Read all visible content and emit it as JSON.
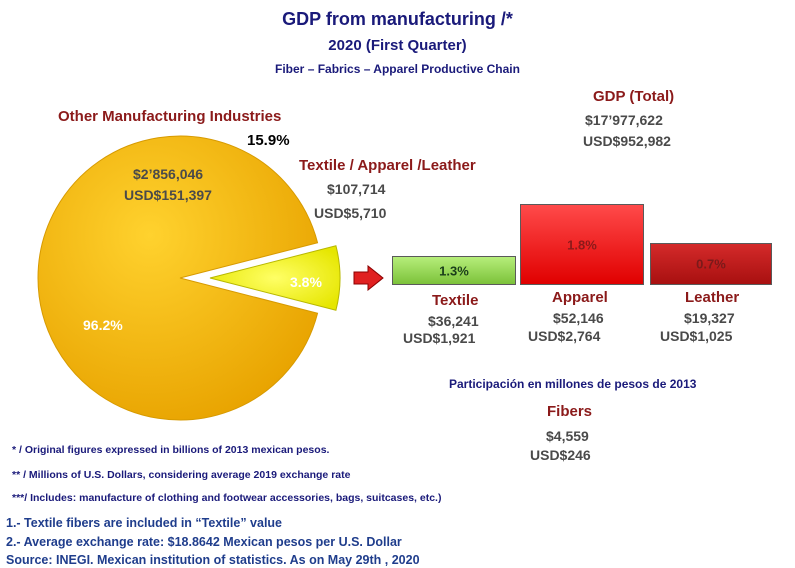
{
  "chart_data": {
    "type": "pie",
    "title": "GDP from manufacturing /*",
    "subtitle": "2020 (First Quarter)",
    "subtitle2": "Fiber – Fabrics – Apparel Productive Chain",
    "slices": [
      {
        "label": "Other Manufacturing Industries",
        "percent": 96.2,
        "percent_label": "96.2%",
        "value_mxn": "$2’856,046",
        "value_usd": "USD$151,397",
        "color": "#f2b705"
      },
      {
        "label": "Textile / Apparel /Leather",
        "percent": 3.8,
        "percent_label": "3.8%",
        "value_mxn": "$107,714",
        "value_usd": "USD$5,710",
        "color": "#ffff33"
      }
    ],
    "callout": "15.9%",
    "total": {
      "label": "GDP (Total)",
      "value_mxn": "$17’977,622",
      "value_usd": "USD$952,982"
    },
    "bars": [
      {
        "label": "Textile",
        "percent": 1.3,
        "percent_label": "1.3%",
        "value_mxn": "$36,241",
        "value_usd": "USD$1,921",
        "color": "#8fd44a"
      },
      {
        "label": "Apparel",
        "percent": 1.8,
        "percent_label": "1.8%",
        "value_mxn": "$52,146",
        "value_usd": "USD$2,764",
        "color": "#ff1a1a"
      },
      {
        "label": "Leather",
        "percent": 0.7,
        "percent_label": "0.7%",
        "value_mxn": "$19,327",
        "value_usd": "USD$1,025",
        "color": "#c41a1a"
      }
    ],
    "participation_note": "Participación en millones de pesos de 2013",
    "fibers": {
      "label": "Fibers",
      "value_mxn": "$4,559",
      "value_usd": "USD$246"
    }
  },
  "footnotes": [
    "* / Original figures expressed in billions of 2013 mexican pesos.",
    "** / Millions of U.S. Dollars, considering average 2019 exchange rate",
    "***/ Includes: manufacture of clothing and footwear accessories, bags, suitcases, etc.)"
  ],
  "notes": [
    "1.- Textile fibers are included in “Textile” value",
    "2.- Average exchange rate: $18.8642 Mexican pesos per U.S. Dollar",
    "Source: INEGI.  Mexican institution of statistics. As on  May  29th , 2020"
  ],
  "colors": {
    "arrow": "#e02020",
    "pie_edge": "#d79a00"
  }
}
